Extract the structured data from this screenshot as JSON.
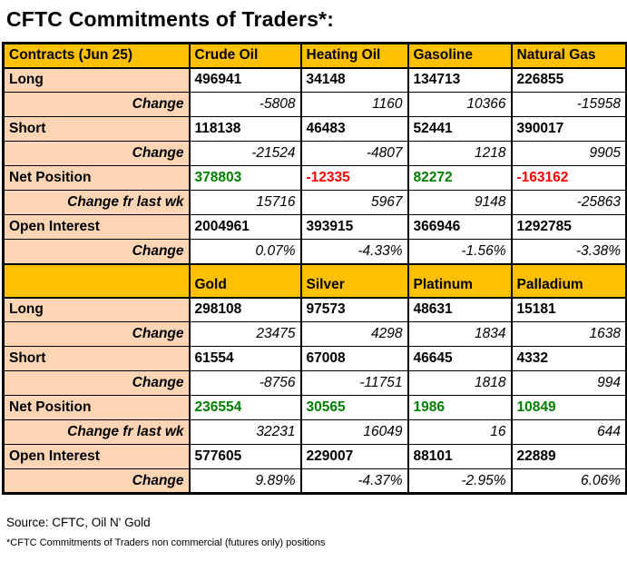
{
  "title": "CFTC Commitments of Traders*:",
  "colors": {
    "header_bg": "#FFC000",
    "label_bg": "#FCD5B4",
    "positive": "#008000",
    "negative": "#FF0000"
  },
  "table": {
    "sections": [
      {
        "header": [
          "Contracts (Jun 25)",
          "Crude Oil",
          "Heating Oil",
          "Gasoline",
          "Natural Gas"
        ],
        "rows": [
          {
            "label": "Long",
            "type": "main",
            "values": [
              "496941",
              "34148",
              "134713",
              "226855"
            ]
          },
          {
            "label": "Change",
            "type": "change",
            "values": [
              "-5808",
              "1160",
              "10366",
              "-15958"
            ]
          },
          {
            "label": "Short",
            "type": "main",
            "values": [
              "118138",
              "46483",
              "52441",
              "390017"
            ]
          },
          {
            "label": "Change",
            "type": "change",
            "values": [
              "-21524",
              "-4807",
              "1218",
              "9905"
            ]
          },
          {
            "label": "Net Position",
            "type": "main",
            "values": [
              "378803",
              "-12335",
              "82272",
              "-163162"
            ],
            "value_colors": [
              "positive",
              "negative",
              "positive",
              "negative"
            ]
          },
          {
            "label": "Change fr last wk",
            "type": "change",
            "values": [
              "15716",
              "5967",
              "9148",
              "-25863"
            ]
          },
          {
            "label": "Open Interest",
            "type": "main",
            "values": [
              "2004961",
              "393915",
              "366946",
              "1292785"
            ]
          },
          {
            "label": "Change",
            "type": "change",
            "values": [
              "0.07%",
              "-4.33%",
              "-1.56%",
              "-3.38%"
            ]
          }
        ]
      },
      {
        "header": [
          "",
          "Gold",
          "Silver",
          "Platinum",
          "Palladium"
        ],
        "rows": [
          {
            "label": "Long",
            "type": "main",
            "values": [
              "298108",
              "97573",
              "48631",
              "15181"
            ]
          },
          {
            "label": "Change",
            "type": "change",
            "values": [
              "23475",
              "4298",
              "1834",
              "1638"
            ]
          },
          {
            "label": "Short",
            "type": "main",
            "values": [
              "61554",
              "67008",
              "46645",
              "4332"
            ]
          },
          {
            "label": "Change",
            "type": "change",
            "values": [
              "-8756",
              "-11751",
              "1818",
              "994"
            ]
          },
          {
            "label": "Net Position",
            "type": "main",
            "values": [
              "236554",
              "30565",
              "1986",
              "10849"
            ],
            "value_colors": [
              "positive",
              "positive",
              "positive",
              "positive"
            ]
          },
          {
            "label": "Change fr last wk",
            "type": "change",
            "values": [
              "32231",
              "16049",
              "16",
              "644"
            ]
          },
          {
            "label": "Open Interest",
            "type": "main",
            "values": [
              "577605",
              "229007",
              "88101",
              "22889"
            ]
          },
          {
            "label": "Change",
            "type": "change",
            "values": [
              "9.89%",
              "-4.37%",
              "-2.95%",
              "6.06%"
            ]
          }
        ]
      }
    ]
  },
  "footer": {
    "source": "Source: CFTC, Oil N' Gold",
    "note": "*CFTC Commitments of Traders non commercial (futures only) positions"
  }
}
